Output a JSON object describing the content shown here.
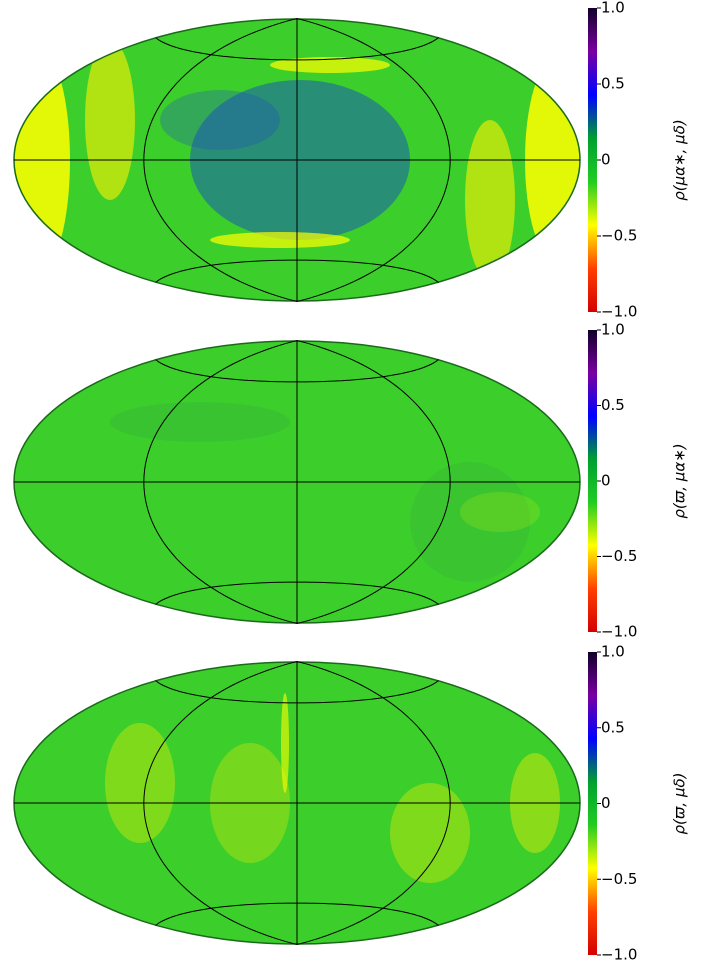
{
  "chart_data": [
    {
      "type": "skymap",
      "colorbar_label": "ρ(μα∗, μδ)",
      "clim": [
        -1,
        1
      ],
      "cticks": [
        {
          "value": -1,
          "label": "−1.0"
        },
        {
          "value": -0.5,
          "label": "−0.5"
        },
        0,
        0.5,
        {
          "value": 1,
          "label": "1.0"
        }
      ],
      "colormap": [
        "#d40000",
        "#ff4000",
        "#ffff00",
        "#22cc22",
        "#00a030",
        "#0000ff",
        "#7a00a0",
        "#10002a"
      ]
    },
    {
      "type": "skymap",
      "colorbar_label": "ρ(ϖ, μα∗)",
      "clim": [
        -1,
        1
      ],
      "cticks": [
        {
          "value": -1,
          "label": "−1.0"
        },
        {
          "value": -0.5,
          "label": "−0.5"
        },
        0,
        0.5,
        {
          "value": 1,
          "label": "1.0"
        }
      ],
      "colormap": [
        "#d40000",
        "#ff4000",
        "#ffff00",
        "#22cc22",
        "#00a030",
        "#0000ff",
        "#7a00a0",
        "#10002a"
      ]
    },
    {
      "type": "skymap",
      "colorbar_label": "ρ(ϖ, μδ)",
      "clim": [
        -1,
        1
      ],
      "cticks": [
        {
          "value": -1,
          "label": "−1.0"
        },
        {
          "value": -0.5,
          "label": "−0.5"
        },
        0,
        0.5,
        {
          "value": 1,
          "label": "1.0"
        }
      ],
      "colormap": [
        "#d40000",
        "#ff4000",
        "#ffff00",
        "#22cc22",
        "#00a030",
        "#0000ff",
        "#7a00a0",
        "#10002a"
      ]
    }
  ]
}
